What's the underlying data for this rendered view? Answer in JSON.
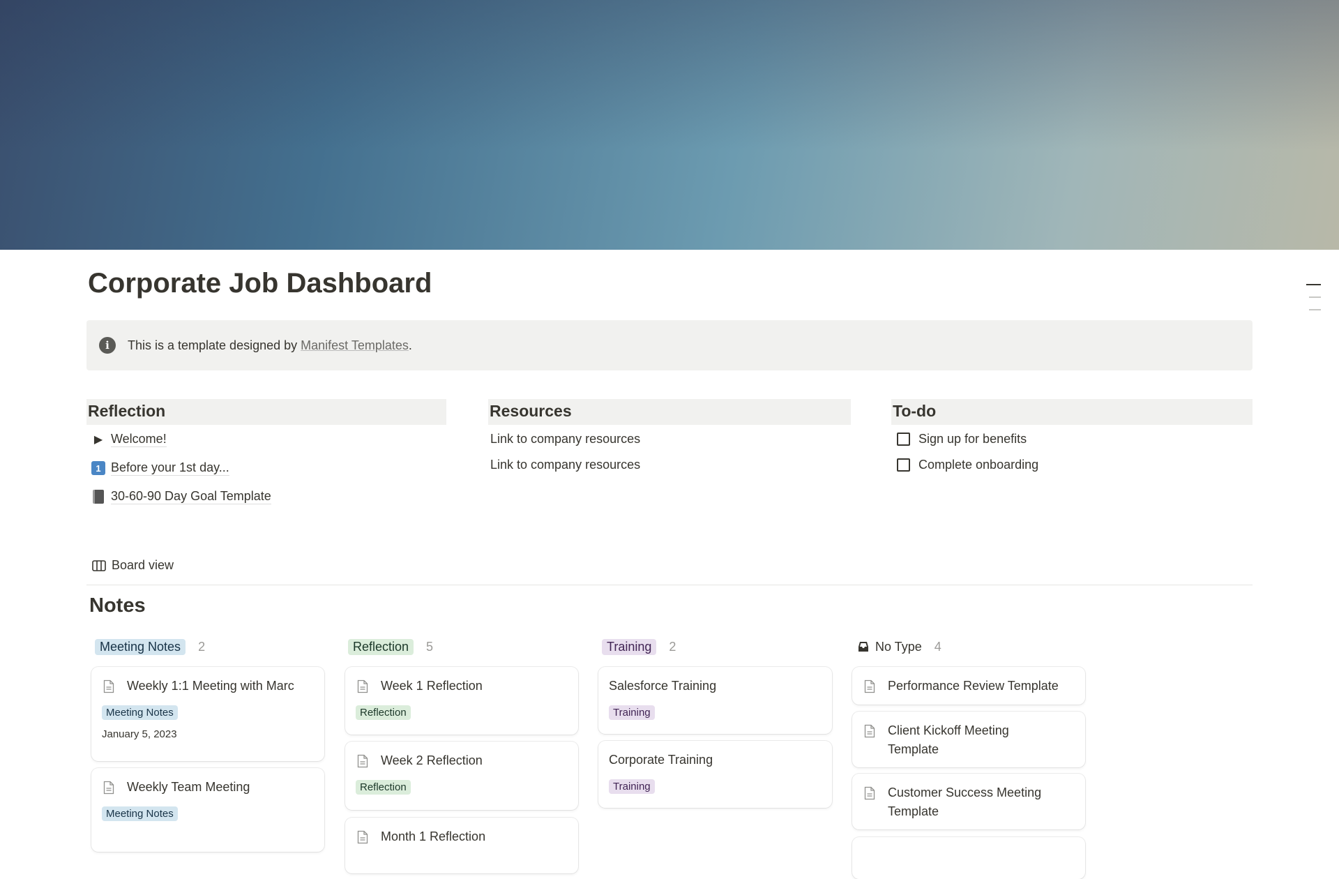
{
  "page": {
    "title": "Corporate Job Dashboard"
  },
  "callout": {
    "icon": "info-icon",
    "text_before": "This is a template designed by ",
    "link": "Manifest Templates",
    "text_after": "."
  },
  "sections": {
    "reflection": {
      "title": "Reflection",
      "items": [
        {
          "icon": "triangle-right-icon",
          "label": "Welcome!"
        },
        {
          "icon": "keycap-one-icon",
          "label": "Before your 1st day..."
        },
        {
          "icon": "notebook-icon",
          "label": "30-60-90 Day Goal Template"
        }
      ]
    },
    "resources": {
      "title": "Resources",
      "items": [
        "Link to company resources",
        "Link to company resources"
      ]
    },
    "todo": {
      "title": "To-do",
      "items": [
        {
          "label": "Sign up for benefits",
          "checked": false
        },
        {
          "label": "Complete onboarding",
          "checked": false
        }
      ]
    }
  },
  "board": {
    "view_label": "Board view",
    "title": "Notes",
    "groups": [
      {
        "label": "Meeting Notes",
        "count": "2",
        "color": "#d3e5ef",
        "cards": [
          {
            "title": "Weekly 1:1 Meeting with Marc",
            "tag": "Meeting Notes",
            "date": "January 5, 2023"
          },
          {
            "title": "Weekly Team Meeting",
            "tag": "Meeting Notes"
          }
        ]
      },
      {
        "label": "Reflection",
        "count": "5",
        "color": "#dbeddb",
        "cards": [
          {
            "title": "Week 1 Reflection",
            "tag": "Reflection"
          },
          {
            "title": "Week 2 Reflection",
            "tag": "Reflection"
          },
          {
            "title": "Month 1 Reflection"
          }
        ]
      },
      {
        "label": "Training",
        "count": "2",
        "color": "#e8deee",
        "cards": [
          {
            "title": "Salesforce Training",
            "tag": "Training"
          },
          {
            "title": "Corporate Training",
            "tag": "Training"
          }
        ]
      },
      {
        "label": "No Type",
        "count": "4",
        "cards": [
          {
            "title": "Performance Review Template"
          },
          {
            "title": "Client Kickoff Meeting Template"
          },
          {
            "title": "Customer Success Meeting Template"
          }
        ]
      }
    ]
  }
}
